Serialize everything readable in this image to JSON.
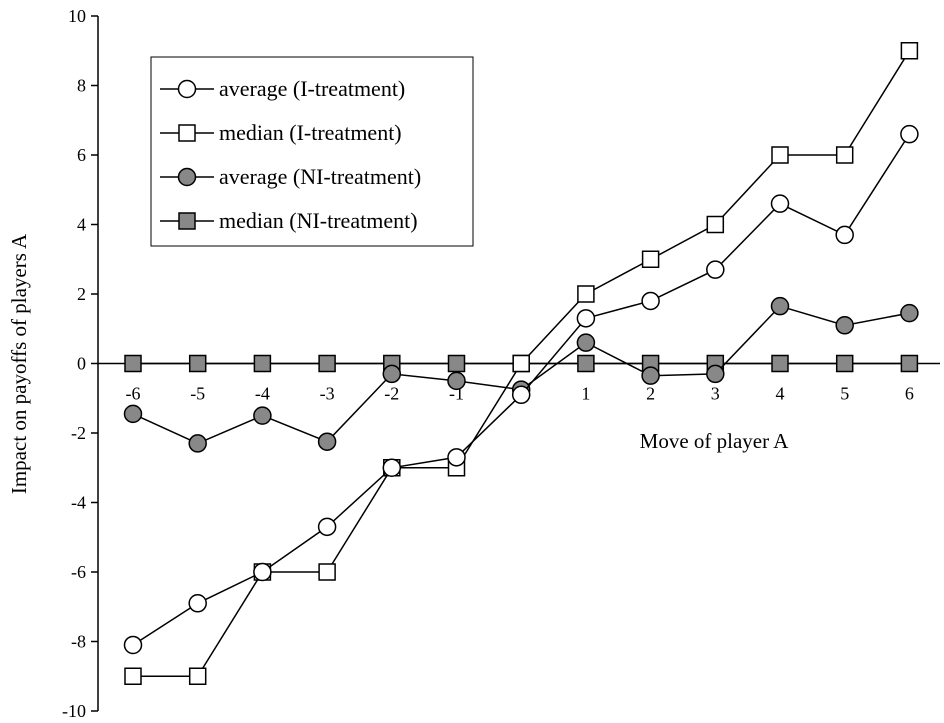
{
  "colors": {
    "line": "#000000",
    "marker_open": "#ffffff",
    "marker_filled": "#888888"
  },
  "chart_data": {
    "type": "line",
    "xlabel": "Move of player A",
    "ylabel": "Impact on payoffs of players A",
    "x": [
      -6,
      -5,
      -4,
      -3,
      -2,
      -1,
      0,
      1,
      2,
      3,
      4,
      5,
      6
    ],
    "ylim": [
      -10,
      10
    ],
    "yticks": [
      10,
      8,
      6,
      4,
      2,
      0,
      -2,
      -4,
      -6,
      -8,
      -10
    ],
    "grid": false,
    "legend_position": "top-left",
    "series": [
      {
        "name": "average (I-treatment)",
        "marker": "circle",
        "fill": "open",
        "values": [
          -8.1,
          -6.9,
          -6.0,
          -4.7,
          -3.0,
          -2.7,
          -0.9,
          1.3,
          1.8,
          2.7,
          4.6,
          3.7,
          6.6
        ]
      },
      {
        "name": "median (I-treatment)",
        "marker": "square",
        "fill": "open",
        "values": [
          -9.0,
          -9.0,
          -6.0,
          -6.0,
          -3.0,
          -3.0,
          0.0,
          2.0,
          3.0,
          4.0,
          6.0,
          6.0,
          9.0
        ]
      },
      {
        "name": "average (NI-treatment)",
        "marker": "circle",
        "fill": "filled",
        "values": [
          -1.45,
          -2.3,
          -1.5,
          -2.25,
          -0.3,
          -0.5,
          -0.75,
          0.6,
          -0.35,
          -0.3,
          1.65,
          1.1,
          1.45
        ]
      },
      {
        "name": "median (NI-treatment)",
        "marker": "square",
        "fill": "filled",
        "values": [
          0,
          0,
          0,
          0,
          0,
          0,
          0,
          0,
          0,
          0,
          0,
          0,
          0
        ]
      }
    ]
  }
}
